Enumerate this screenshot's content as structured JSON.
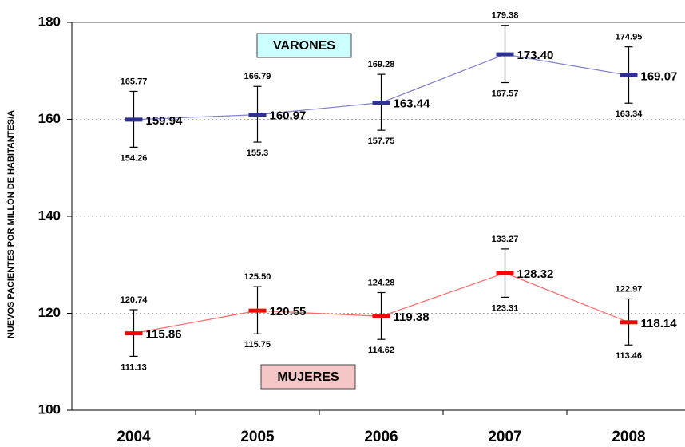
{
  "chart_data": {
    "type": "errorbar-line",
    "y_label": "NUEVOS PACIENTES POR MILLÓN DE HABITANTES/A",
    "categories": [
      "2004",
      "2005",
      "2006",
      "2007",
      "2008"
    ],
    "ylim": [
      100,
      180
    ],
    "yticks": [
      100,
      120,
      140,
      160,
      180
    ],
    "grid": true,
    "series": [
      {
        "name": "VARONES",
        "color": "#8080d0",
        "marker_color": "#2e3192",
        "values": [
          159.94,
          160.97,
          163.44,
          173.4,
          169.07
        ],
        "value_labels": [
          "159.94",
          "160.97",
          "163.44",
          "173.40",
          "169.07"
        ],
        "lower": [
          154.26,
          155.3,
          157.75,
          167.57,
          163.34
        ],
        "upper": [
          165.77,
          166.79,
          169.28,
          179.38,
          174.95
        ]
      },
      {
        "name": "MUJERES",
        "color": "#ff6666",
        "marker_color": "#ff0000",
        "values": [
          115.86,
          120.55,
          119.38,
          128.32,
          118.14
        ],
        "value_labels": [
          "115.86",
          "120.55",
          "119.38",
          "128.32",
          "118.14"
        ],
        "lower": [
          111.13,
          115.75,
          114.62,
          123.31,
          113.46
        ],
        "upper": [
          120.74,
          125.5,
          124.28,
          133.27,
          122.97
        ],
        "upper_labels": [
          "120.74",
          "125.50",
          "124.28",
          "133.27",
          "122.97"
        ]
      }
    ]
  }
}
